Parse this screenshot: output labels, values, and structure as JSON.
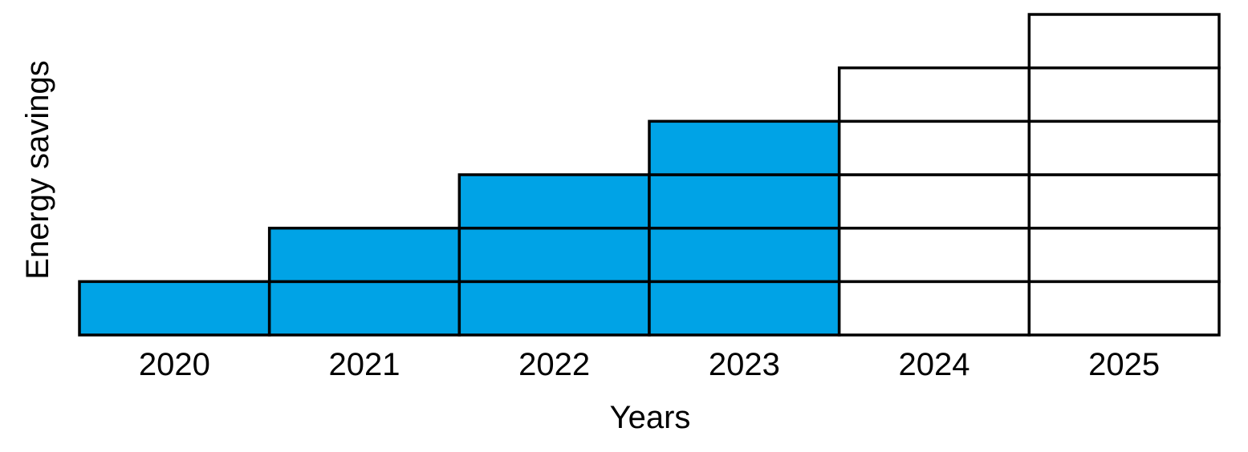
{
  "chart_data": {
    "type": "bar",
    "stacked": true,
    "title": "",
    "xlabel": "Years",
    "ylabel": "Energy savings",
    "categories": [
      "2020",
      "2021",
      "2022",
      "2023",
      "2024",
      "2025"
    ],
    "values": [
      1,
      2,
      3,
      4,
      5,
      6
    ],
    "series": [
      {
        "values": [
          1,
          2,
          3,
          4,
          0,
          0
        ],
        "color": "#00A3E6"
      },
      {
        "values": [
          0,
          0,
          0,
          0,
          5,
          6
        ],
        "color": "#FFFFFF"
      }
    ],
    "ylim": [
      0,
      6
    ],
    "grid": false,
    "legend": "none",
    "colors": {
      "filled": "#00A3E6",
      "empty": "#FFFFFF",
      "edge": "#000000"
    }
  }
}
